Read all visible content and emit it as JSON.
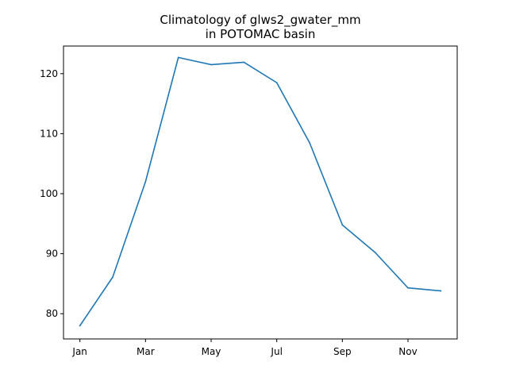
{
  "chart_data": {
    "type": "line",
    "title_line1": "Climatology of glws2_gwater_mm",
    "title_line2": "in POTOMAC basin",
    "xlabel": "",
    "ylabel": "",
    "x_tick_labels": [
      "Jan",
      "Mar",
      "May",
      "Jul",
      "Sep",
      "Nov"
    ],
    "x_tick_months": [
      1,
      3,
      5,
      7,
      9,
      11
    ],
    "y_ticks": [
      80,
      90,
      100,
      110,
      120
    ],
    "xlim": [
      0.5,
      12.5
    ],
    "ylim": [
      75.8,
      124.6
    ],
    "series": [
      {
        "x": [
          1,
          2,
          3,
          4,
          5,
          6,
          7,
          8,
          9,
          10,
          11,
          12
        ],
        "values": [
          78.0,
          86.1,
          102.0,
          122.7,
          121.5,
          121.9,
          118.5,
          108.5,
          94.8,
          90.2,
          84.3,
          83.8
        ]
      }
    ],
    "line_color": "#1f77b4",
    "grid": false,
    "legend": "none"
  }
}
